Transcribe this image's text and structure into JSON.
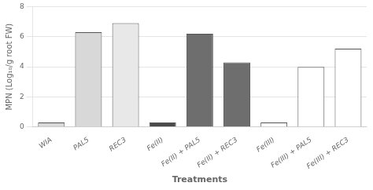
{
  "chart_data": {
    "type": "bar",
    "categories": [
      "WIA",
      "PAL5",
      "REC3",
      "Fe(II)",
      "Fe(II) + PAL5",
      "Fe(II) + REC3",
      "Fe(III)",
      "Fe(III) + PAL5",
      "Fe(III) + REC3"
    ],
    "values": [
      0.3,
      6.3,
      6.9,
      0.3,
      6.2,
      4.3,
      0.3,
      4.0,
      5.2
    ],
    "colors": [
      "#d8d8d8",
      "#d8d8d8",
      "#e8e8e8",
      "#4a4a4a",
      "#6e6e6e",
      "#6e6e6e",
      "#ffffff",
      "#ffffff",
      "#ffffff"
    ],
    "xlabel": "Treatments",
    "ylabel": "MPN (Log₁₀/g root FW)",
    "ylim": [
      0,
      8
    ],
    "yticks": [
      0,
      2,
      4,
      6,
      8
    ],
    "grid": true
  }
}
